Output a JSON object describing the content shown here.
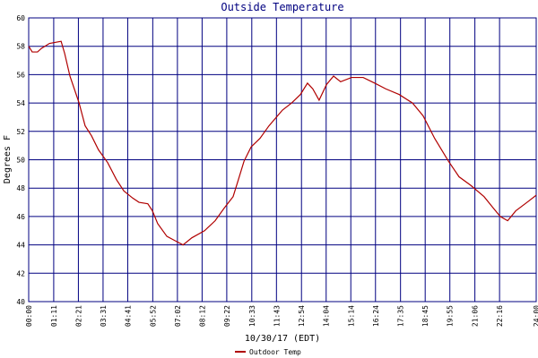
{
  "chart_data": {
    "type": "line",
    "title": "Outside Temperature",
    "x_label": "10/30/17 (EDT)",
    "y_label": "Degrees F",
    "x": [
      0,
      10,
      25,
      36,
      59,
      92,
      102,
      117,
      143,
      160,
      178,
      198,
      224,
      249,
      270,
      295,
      313,
      338,
      351,
      366,
      392,
      415,
      438,
      463,
      499,
      529,
      555,
      580,
      595,
      611,
      631,
      656,
      682,
      720,
      746,
      771,
      791,
      806,
      824,
      845,
      865,
      885,
      916,
      949,
      982,
      1013,
      1051,
      1089,
      1119,
      1152,
      1191,
      1221,
      1254,
      1292,
      1318,
      1338,
      1359,
      1382,
      1414,
      1440
    ],
    "series": [
      {
        "name": "Outdoor Temp",
        "color": "#b00000",
        "values": [
          58.0,
          57.6,
          57.6,
          57.85,
          58.2,
          58.35,
          57.5,
          55.9,
          54.0,
          52.4,
          51.7,
          50.7,
          49.8,
          48.6,
          47.8,
          47.3,
          47.0,
          46.9,
          46.4,
          45.5,
          44.6,
          44.3,
          44.0,
          44.5,
          45.0,
          45.7,
          46.6,
          47.4,
          48.6,
          49.9,
          50.9,
          51.5,
          52.4,
          53.5,
          54.0,
          54.6,
          55.4,
          55.0,
          54.2,
          55.3,
          55.9,
          55.5,
          55.8,
          55.8,
          55.4,
          55.0,
          54.6,
          54.0,
          53.1,
          51.5,
          49.9,
          48.8,
          48.2,
          47.4,
          46.6,
          46.0,
          45.7,
          46.4,
          47.0,
          47.5
        ]
      }
    ],
    "xlim": [
      0,
      1440
    ],
    "xticks": [
      {
        "value": 0,
        "label": "00:00"
      },
      {
        "value": 71,
        "label": "01:11"
      },
      {
        "value": 141,
        "label": "02:21"
      },
      {
        "value": 211,
        "label": "03:31"
      },
      {
        "value": 281,
        "label": "04:41"
      },
      {
        "value": 352,
        "label": "05:52"
      },
      {
        "value": 422,
        "label": "07:02"
      },
      {
        "value": 492,
        "label": "08:12"
      },
      {
        "value": 562,
        "label": "09:22"
      },
      {
        "value": 633,
        "label": "10:33"
      },
      {
        "value": 703,
        "label": "11:43"
      },
      {
        "value": 774,
        "label": "12:54"
      },
      {
        "value": 844,
        "label": "14:04"
      },
      {
        "value": 914,
        "label": "15:14"
      },
      {
        "value": 984,
        "label": "16:24"
      },
      {
        "value": 1055,
        "label": "17:35"
      },
      {
        "value": 1125,
        "label": "18:45"
      },
      {
        "value": 1195,
        "label": "19:55"
      },
      {
        "value": 1266,
        "label": "21:06"
      },
      {
        "value": 1336,
        "label": "22:16"
      },
      {
        "value": 1440,
        "label": "24:00"
      }
    ],
    "ylim": [
      40,
      60
    ],
    "yticks": [
      40,
      42,
      44,
      46,
      48,
      50,
      52,
      54,
      56,
      58,
      60
    ],
    "grid": true,
    "legend": "bottom"
  }
}
